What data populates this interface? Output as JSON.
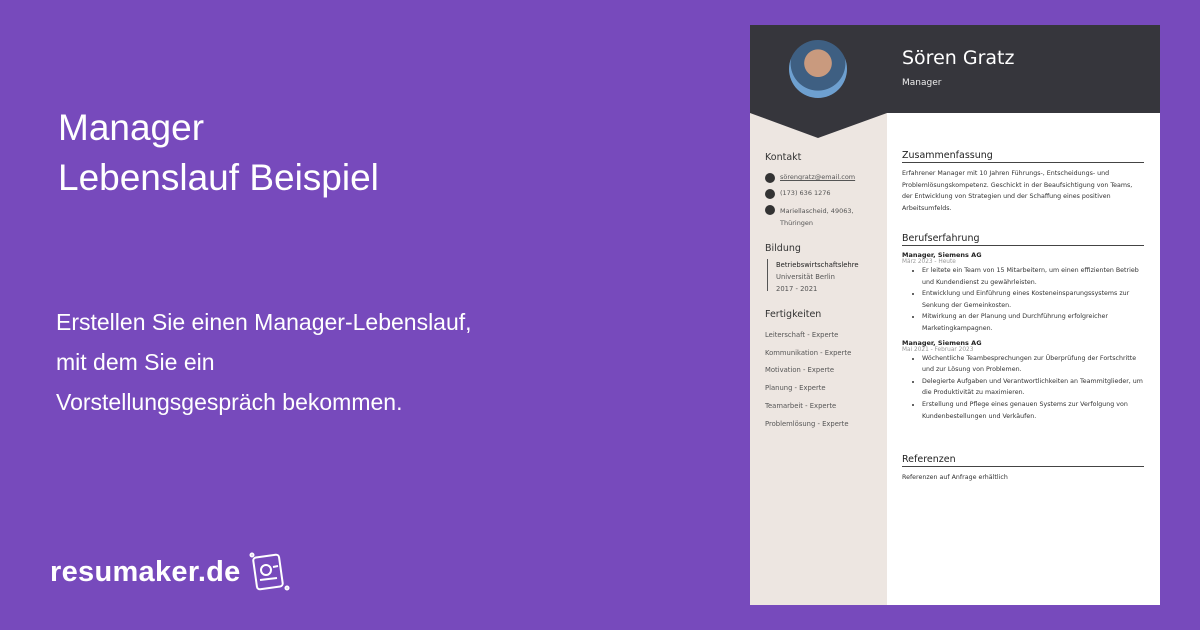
{
  "headline": {
    "line1": "Manager",
    "line2": "Lebenslauf Beispiel"
  },
  "subtitle": {
    "line1": "Erstellen Sie einen Manager-Lebenslauf,",
    "line2": "mit dem Sie ein",
    "line3": "Vorstellungsgespräch bekommen."
  },
  "brand": {
    "name": "resumaker.de",
    "icon": "resume-icon"
  },
  "colors": {
    "background": "#774abc",
    "header": "#36363c",
    "sidebar": "#ede6e1"
  },
  "resume": {
    "name": "Sören Gratz",
    "role": "Manager",
    "contact": {
      "title": "Kontakt",
      "email": "sörengratz@email.com",
      "phone": "(173) 636 1276",
      "address1": "Mariellascheid, 49063,",
      "address2": "Thüringen"
    },
    "education": {
      "title": "Bildung",
      "degree": "Betriebswirtschaftslehre",
      "school": "Universität Berlin",
      "years": "2017 - 2021"
    },
    "skills": {
      "title": "Fertigkeiten",
      "items": [
        "Leiterschaft - Experte",
        "Kommunikation - Experte",
        "Motivation - Experte",
        "Planung - Experte",
        "Teamarbeit - Experte",
        "Problemlösung - Experte"
      ]
    },
    "summary": {
      "title": "Zusammenfassung",
      "text": "Erfahrener Manager mit 10 Jahren Führungs-, Entscheidungs- und Problemlösungskompetenz. Geschickt in der Beaufsichtigung von Teams, der Entwicklung von Strategien und der Schaffung eines positiven Arbeitsumfelds."
    },
    "experience": {
      "title": "Berufserfahrung",
      "jobs": [
        {
          "title": "Manager, Siemens AG",
          "dates": "März 2023 - Heute",
          "bullets": [
            "Er leitete ein Team von 15 Mitarbeitern, um einen effizienten Betrieb und Kundendienst zu gewährleisten.",
            "Entwicklung und Einführung eines Kosteneinsparungssystems zur Senkung der Gemeinkosten.",
            "Mitwirkung an der Planung und Durchführung erfolgreicher Marketingkampagnen."
          ]
        },
        {
          "title": "Manager, Siemens AG",
          "dates": "Mai 2021 - Februar 2023",
          "bullets": [
            "Wöchentliche Teambesprechungen zur Überprüfung der Fortschritte und zur Lösung von Problemen.",
            "Delegierte Aufgaben und Verantwortlichkeiten an Teammitglieder, um die Produktivität zu maximieren.",
            "Erstellung und Pflege eines genauen Systems zur Verfolgung von Kundenbestellungen und Verkäufen."
          ]
        }
      ]
    },
    "references": {
      "title": "Referenzen",
      "text": "Referenzen auf Anfrage erhältlich"
    }
  }
}
